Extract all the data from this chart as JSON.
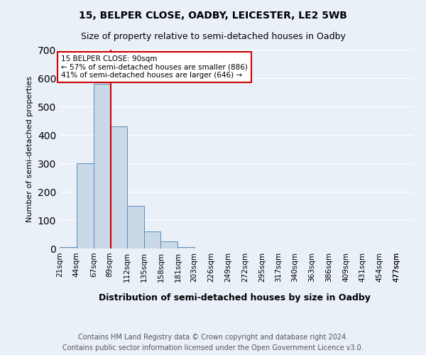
{
  "title1": "15, BELPER CLOSE, OADBY, LEICESTER, LE2 5WB",
  "title2": "Size of property relative to semi-detached houses in Oadby",
  "xlabel": "Distribution of semi-detached houses by size in Oadby",
  "ylabel": "Number of semi-detached properties",
  "footer1": "Contains HM Land Registry data © Crown copyright and database right 2024.",
  "footer2": "Contains public sector information licensed under the Open Government Licence v3.0.",
  "bin_labels": [
    "21sqm",
    "44sqm",
    "67sqm",
    "89sqm",
    "112sqm",
    "135sqm",
    "158sqm",
    "181sqm",
    "203sqm",
    "226sqm",
    "249sqm",
    "272sqm",
    "295sqm",
    "317sqm",
    "340sqm",
    "363sqm",
    "386sqm",
    "409sqm",
    "431sqm",
    "454sqm",
    "477sqm"
  ],
  "bin_edges": [
    21,
    44,
    67,
    89,
    112,
    135,
    158,
    181,
    203,
    226,
    249,
    272,
    295,
    317,
    340,
    363,
    386,
    409,
    431,
    454,
    477
  ],
  "bar_heights": [
    5,
    300,
    580,
    430,
    150,
    60,
    25,
    5,
    1,
    0,
    0,
    1,
    0,
    0,
    0,
    0,
    0,
    0,
    0,
    0
  ],
  "bar_color": "#c9d9e8",
  "bar_edge_color": "#5b8db8",
  "property_size": 90,
  "annotation_title": "15 BELPER CLOSE: 90sqm",
  "annotation_line1": "← 57% of semi-detached houses are smaller (886)",
  "annotation_line2": "41% of semi-detached houses are larger (646) →",
  "red_line_color": "#cc0000",
  "annotation_box_color": "#ffffff",
  "annotation_box_edge": "#cc0000",
  "ylim": [
    0,
    700
  ],
  "yticks": [
    0,
    100,
    200,
    300,
    400,
    500,
    600,
    700
  ],
  "background_color": "#eaf0f8",
  "plot_bg_color": "#eaf0f8",
  "grid_color": "#ffffff",
  "title1_fontsize": 10,
  "title2_fontsize": 9,
  "axis_fontsize": 7.5,
  "footer_fontsize": 7.0,
  "ylabel_fontsize": 8,
  "xlabel_fontsize": 9
}
